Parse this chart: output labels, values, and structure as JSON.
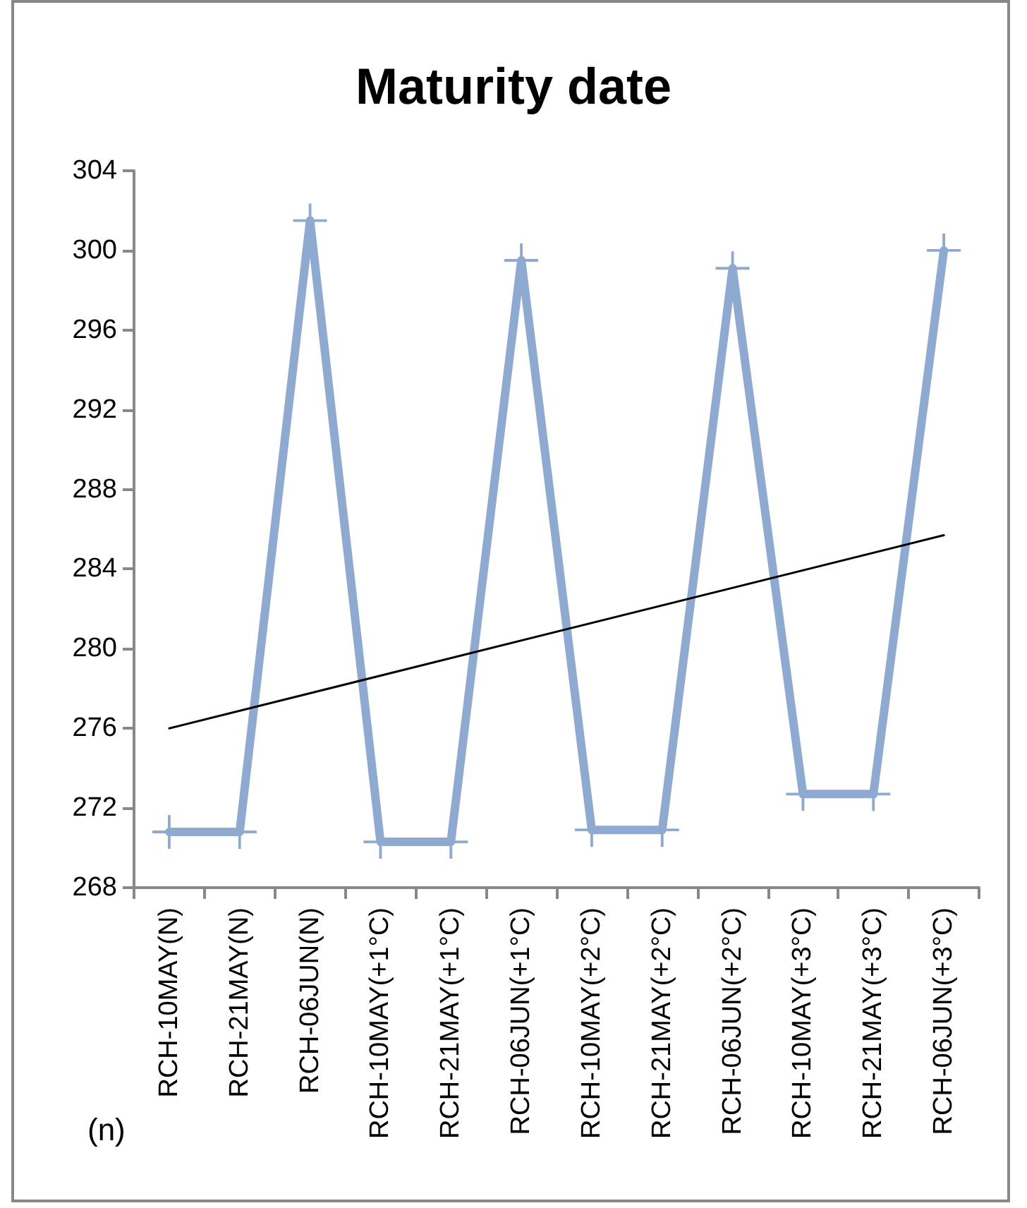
{
  "chart_data": {
    "type": "line",
    "title": "Maturity date",
    "categories": [
      "RCH-10MAY(N)",
      "RCH-21MAY(N)",
      "RCH-06JUN(N)",
      "RCH-10MAY(+1°C)",
      "RCH-21MAY(+1°C)",
      "RCH-06JUN(+1°C)",
      "RCH-10MAY(+2°C)",
      "RCH-21MAY(+2°C)",
      "RCH-06JUN(+2°C)",
      "RCH-10MAY(+3°C)",
      "RCH-21MAY(+3°C)",
      "RCH-06JUN(+3°C)"
    ],
    "series": [
      {
        "color": "#8eaad0",
        "marker": "cross",
        "values": [
          270.8,
          270.8,
          301.5,
          270.3,
          270.3,
          299.5,
          270.9,
          270.9,
          299.1,
          272.7,
          272.7,
          300.0
        ]
      },
      {
        "type": "line",
        "color": "#000000",
        "marker": "none",
        "x": [
          "RCH-10MAY(N)",
          "RCH-06JUN(+3°C)"
        ],
        "values": [
          276.0,
          285.7
        ]
      }
    ],
    "ylim": [
      268,
      304
    ],
    "yticks": [
      268,
      272,
      276,
      280,
      284,
      288,
      292,
      296,
      300,
      304
    ],
    "grid": false,
    "annotations": [
      "(n)"
    ]
  }
}
